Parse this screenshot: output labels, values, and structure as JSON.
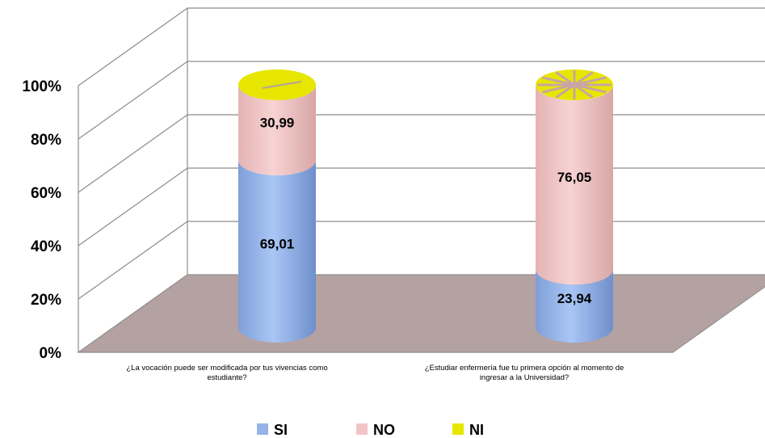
{
  "chart_data": {
    "type": "bar",
    "stacked": "percent",
    "shape": "3d-cylinder",
    "categories": [
      [
        "¿La vocación puede ser modificada por tus vivencias como",
        "estudiante?"
      ],
      [
        "¿Estudiar enfermería fue tu primera opción al momento de",
        "ingresar a la Universidad?"
      ]
    ],
    "series": [
      {
        "name": "SI",
        "values": [
          69.01,
          23.94
        ],
        "labels": [
          "69,01",
          "23,94"
        ],
        "color": "#95B3E8"
      },
      {
        "name": "NO",
        "values": [
          30.99,
          76.05
        ],
        "labels": [
          "30,99",
          "76,05"
        ],
        "color": "#F2C4C4"
      },
      {
        "name": "NI",
        "values": [
          0,
          0.01
        ],
        "labels": [
          "",
          ""
        ],
        "color": "#E6E600"
      }
    ],
    "y_ticks": [
      "0%",
      "20%",
      "40%",
      "60%",
      "80%",
      "100%"
    ],
    "ylim": [
      0,
      100
    ],
    "grid": true,
    "legend_position": "bottom",
    "floor_color": "#B4A1A1"
  }
}
